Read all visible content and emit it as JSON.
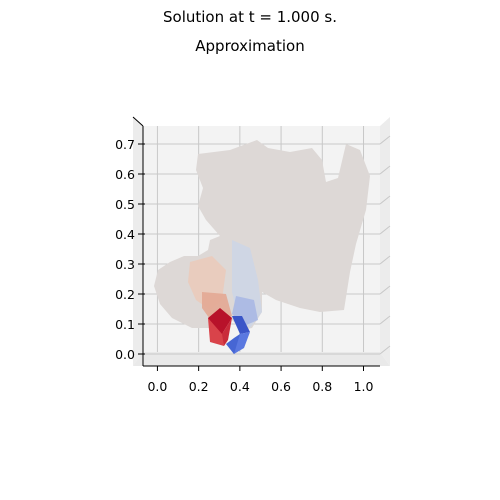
{
  "figure": {
    "suptitle": "Solution at t = 1.000 s.",
    "subtitle": "Approximation"
  },
  "chart_data": {
    "type": "surface3d",
    "view": "top-down",
    "colormap": "coolwarm",
    "x_ticks": [
      "0.0",
      "0.2",
      "0.4",
      "0.6",
      "0.8",
      "1.0"
    ],
    "x_tick_values": [
      0.0,
      0.2,
      0.4,
      0.6,
      0.8,
      1.0
    ],
    "y_ticks": [
      "0.0",
      "0.1",
      "0.2",
      "0.3",
      "0.4",
      "0.5",
      "0.6",
      "0.7"
    ],
    "y_tick_values": [
      0.0,
      0.1,
      0.2,
      0.3,
      0.4,
      0.5,
      0.6,
      0.7
    ],
    "xlim": [
      -0.07,
      1.08
    ],
    "ylim": [
      -0.04,
      0.76
    ],
    "grid": true,
    "colors": {
      "neutral": "#ddd8d6",
      "pane": "#f3f3f3",
      "grid": "#c8c8c8",
      "warm_peak": "#b8122a",
      "warm": "#d9434a",
      "cool_peak": "#3a55c8",
      "cool": "#5a78e0"
    }
  }
}
